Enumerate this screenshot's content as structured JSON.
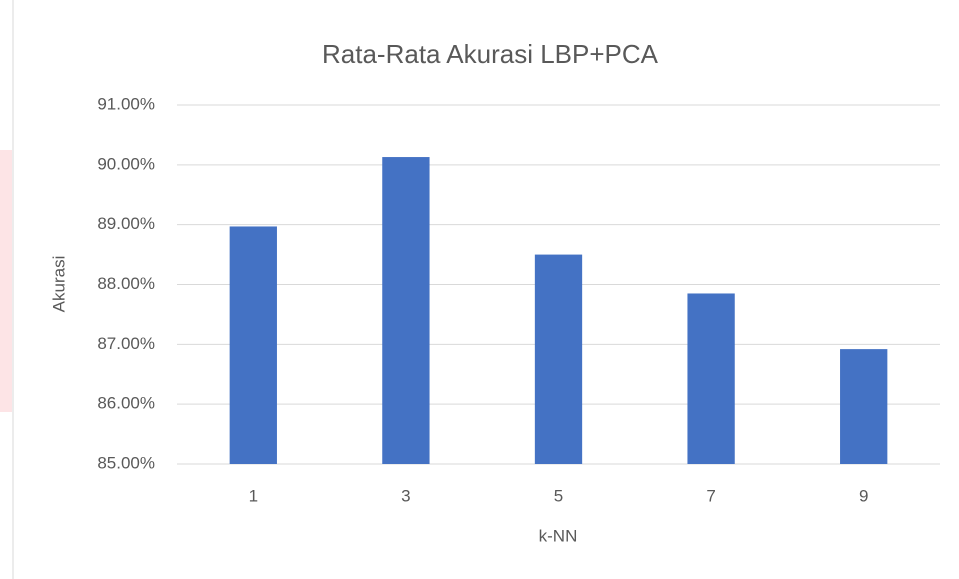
{
  "chart_data": {
    "type": "bar",
    "title": "Rata-Rata Akurasi LBP+PCA",
    "x_label": "k-NN",
    "y_label": "Akurasi",
    "categories": [
      "1",
      "3",
      "5",
      "7",
      "9"
    ],
    "values": [
      88.97,
      90.13,
      88.5,
      87.85,
      86.92
    ],
    "color": "#4472c4",
    "ylim": [
      85,
      91
    ],
    "yticks": [
      {
        "value": 85,
        "label": "85.00%"
      },
      {
        "value": 86,
        "label": "86.00%"
      },
      {
        "value": 87,
        "label": "87.00%"
      },
      {
        "value": 88,
        "label": "88.00%"
      },
      {
        "value": 89,
        "label": "89.00%"
      },
      {
        "value": 90,
        "label": "90.00%"
      },
      {
        "value": 91,
        "label": "91.00%"
      }
    ],
    "grid": true
  }
}
